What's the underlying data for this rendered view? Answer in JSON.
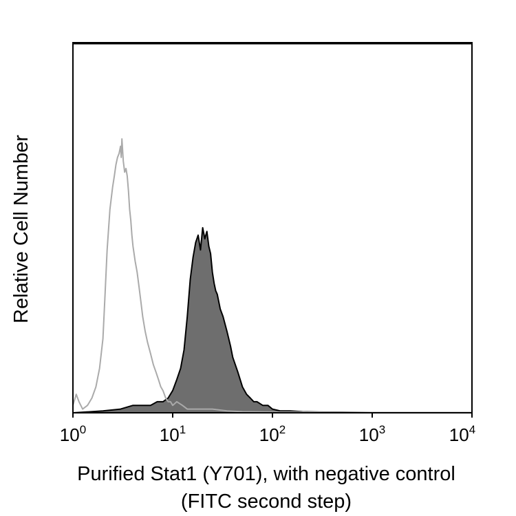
{
  "chart_data": {
    "type": "histogram",
    "title": "",
    "xlabel_line1": "Purified Stat1 (Y701), with negative control",
    "xlabel_line2": "(FITC second step)",
    "ylabel": "Relative Cell Number",
    "x_scale": "log",
    "xlim": [
      1,
      10000
    ],
    "ylim": [
      0,
      100
    ],
    "x_ticks": [
      {
        "base": "10",
        "exp": "0",
        "value": 1
      },
      {
        "base": "10",
        "exp": "1",
        "value": 10
      },
      {
        "base": "10",
        "exp": "2",
        "value": 100
      },
      {
        "base": "10",
        "exp": "3",
        "value": 1000
      },
      {
        "base": "10",
        "exp": "4",
        "value": 10000
      }
    ],
    "series": [
      {
        "name": "Negative control",
        "style": "outline",
        "color": "#aaaaaa",
        "x": [
          1.0,
          1.08,
          1.15,
          1.25,
          1.4,
          1.55,
          1.7,
          1.85,
          2.0,
          2.1,
          2.2,
          2.35,
          2.5,
          2.6,
          2.7,
          2.8,
          2.9,
          3.0,
          3.05,
          3.1,
          3.2,
          3.3,
          3.4,
          3.5,
          3.6,
          3.7,
          3.8,
          3.9,
          4.0,
          4.2,
          4.4,
          4.6,
          4.8,
          5.0,
          5.3,
          5.6,
          6.0,
          6.4,
          6.8,
          7.2,
          7.6,
          8.0,
          8.5,
          9.0,
          9.5,
          10.0,
          11.0,
          12.5,
          14.0,
          16.0,
          20.0,
          25.0,
          35.0,
          50.0,
          100.0,
          200.0,
          500.0,
          1000.0,
          10000.0
        ],
        "y": [
          2,
          5,
          3,
          1,
          2,
          4,
          7,
          12,
          20,
          32,
          44,
          55,
          61,
          64,
          67,
          69,
          70,
          72,
          69,
          74,
          68,
          65,
          66,
          64,
          60,
          55,
          52,
          48,
          45,
          41,
          38,
          34,
          30,
          26,
          22,
          19,
          16,
          13,
          11,
          9,
          7,
          6,
          4,
          3,
          3,
          2,
          3,
          2,
          1,
          1,
          1,
          1,
          0.5,
          0.3,
          0.2,
          0.2,
          0.1,
          0.1,
          0.1
        ]
      },
      {
        "name": "Purified Stat1 (Y701)",
        "style": "filled",
        "fill_color": "#6e6e6e",
        "edge_color": "#000000",
        "x": [
          1.0,
          2.0,
          3.0,
          4.0,
          5.0,
          6.0,
          7.0,
          8.0,
          9.0,
          10.0,
          11.0,
          12.0,
          13.0,
          14.0,
          15.0,
          16.0,
          17.0,
          18.0,
          19.0,
          20.0,
          21.0,
          22.0,
          23.0,
          24.0,
          25.0,
          26.0,
          27.0,
          28.0,
          30.0,
          32.0,
          35.0,
          38.0,
          40.0,
          45.0,
          50.0,
          55.0,
          60.0,
          65.0,
          70.0,
          80.0,
          90.0,
          100.0,
          120.0,
          150.0,
          200.0,
          300.0,
          1000.0,
          10000.0
        ],
        "y": [
          0,
          0.5,
          1,
          2,
          2,
          2,
          3,
          3,
          4,
          6,
          9,
          12,
          17,
          26,
          36,
          42,
          46,
          48,
          44,
          50,
          47,
          49,
          45,
          43,
          38,
          35,
          33,
          32,
          28,
          26,
          22,
          18,
          15,
          11,
          7,
          5,
          4,
          3,
          3,
          2,
          2,
          1,
          0.5,
          0.5,
          0.3,
          0.2,
          0.1,
          0.1
        ]
      }
    ]
  }
}
